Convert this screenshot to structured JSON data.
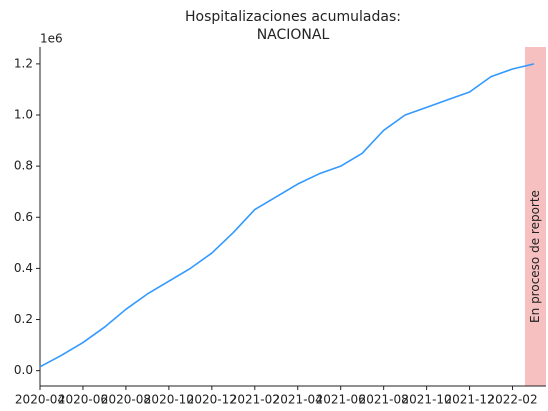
{
  "chart_data": {
    "type": "line",
    "title": [
      "Hospitalizaciones acumuladas:",
      "NACIONAL"
    ],
    "y_offset_label": "1e6",
    "x": [
      "2020-04",
      "2020-05",
      "2020-06",
      "2020-07",
      "2020-08",
      "2020-09",
      "2020-10",
      "2020-11",
      "2020-12",
      "2021-01",
      "2021-02",
      "2021-03",
      "2021-04",
      "2021-05",
      "2021-06",
      "2021-07",
      "2021-08",
      "2021-09",
      "2021-10",
      "2021-11",
      "2021-12",
      "2022-01",
      "2022-02",
      "2022-03"
    ],
    "series": [
      {
        "color": "#3399ff",
        "values": [
          0.015,
          0.06,
          0.11,
          0.17,
          0.24,
          0.3,
          0.35,
          0.4,
          0.46,
          0.54,
          0.63,
          0.68,
          0.73,
          0.77,
          0.8,
          0.85,
          0.94,
          1.0,
          1.03,
          1.06,
          1.09,
          1.15,
          1.18,
          1.2
        ]
      }
    ],
    "xlim": [
      "2020-04",
      "2022-03"
    ],
    "xticks": [
      "2020-04",
      "2020-06",
      "2020-08",
      "2020-10",
      "2020-12",
      "2021-02",
      "2021-04",
      "2021-06",
      "2021-08",
      "2021-10",
      "2021-12",
      "2022-02"
    ],
    "ylim": [
      -0.06,
      1.266
    ],
    "yticks": [
      {
        "value": 0,
        "label": "0.0"
      },
      0.2,
      0.4,
      0.6,
      0.8,
      {
        "value": 1,
        "label": "1.0"
      },
      1.2
    ],
    "band": {
      "from": "2022-02",
      "to": "2022-03",
      "label": "En proceso de reporte",
      "color": "#f4b0b0"
    },
    "grid": false
  }
}
